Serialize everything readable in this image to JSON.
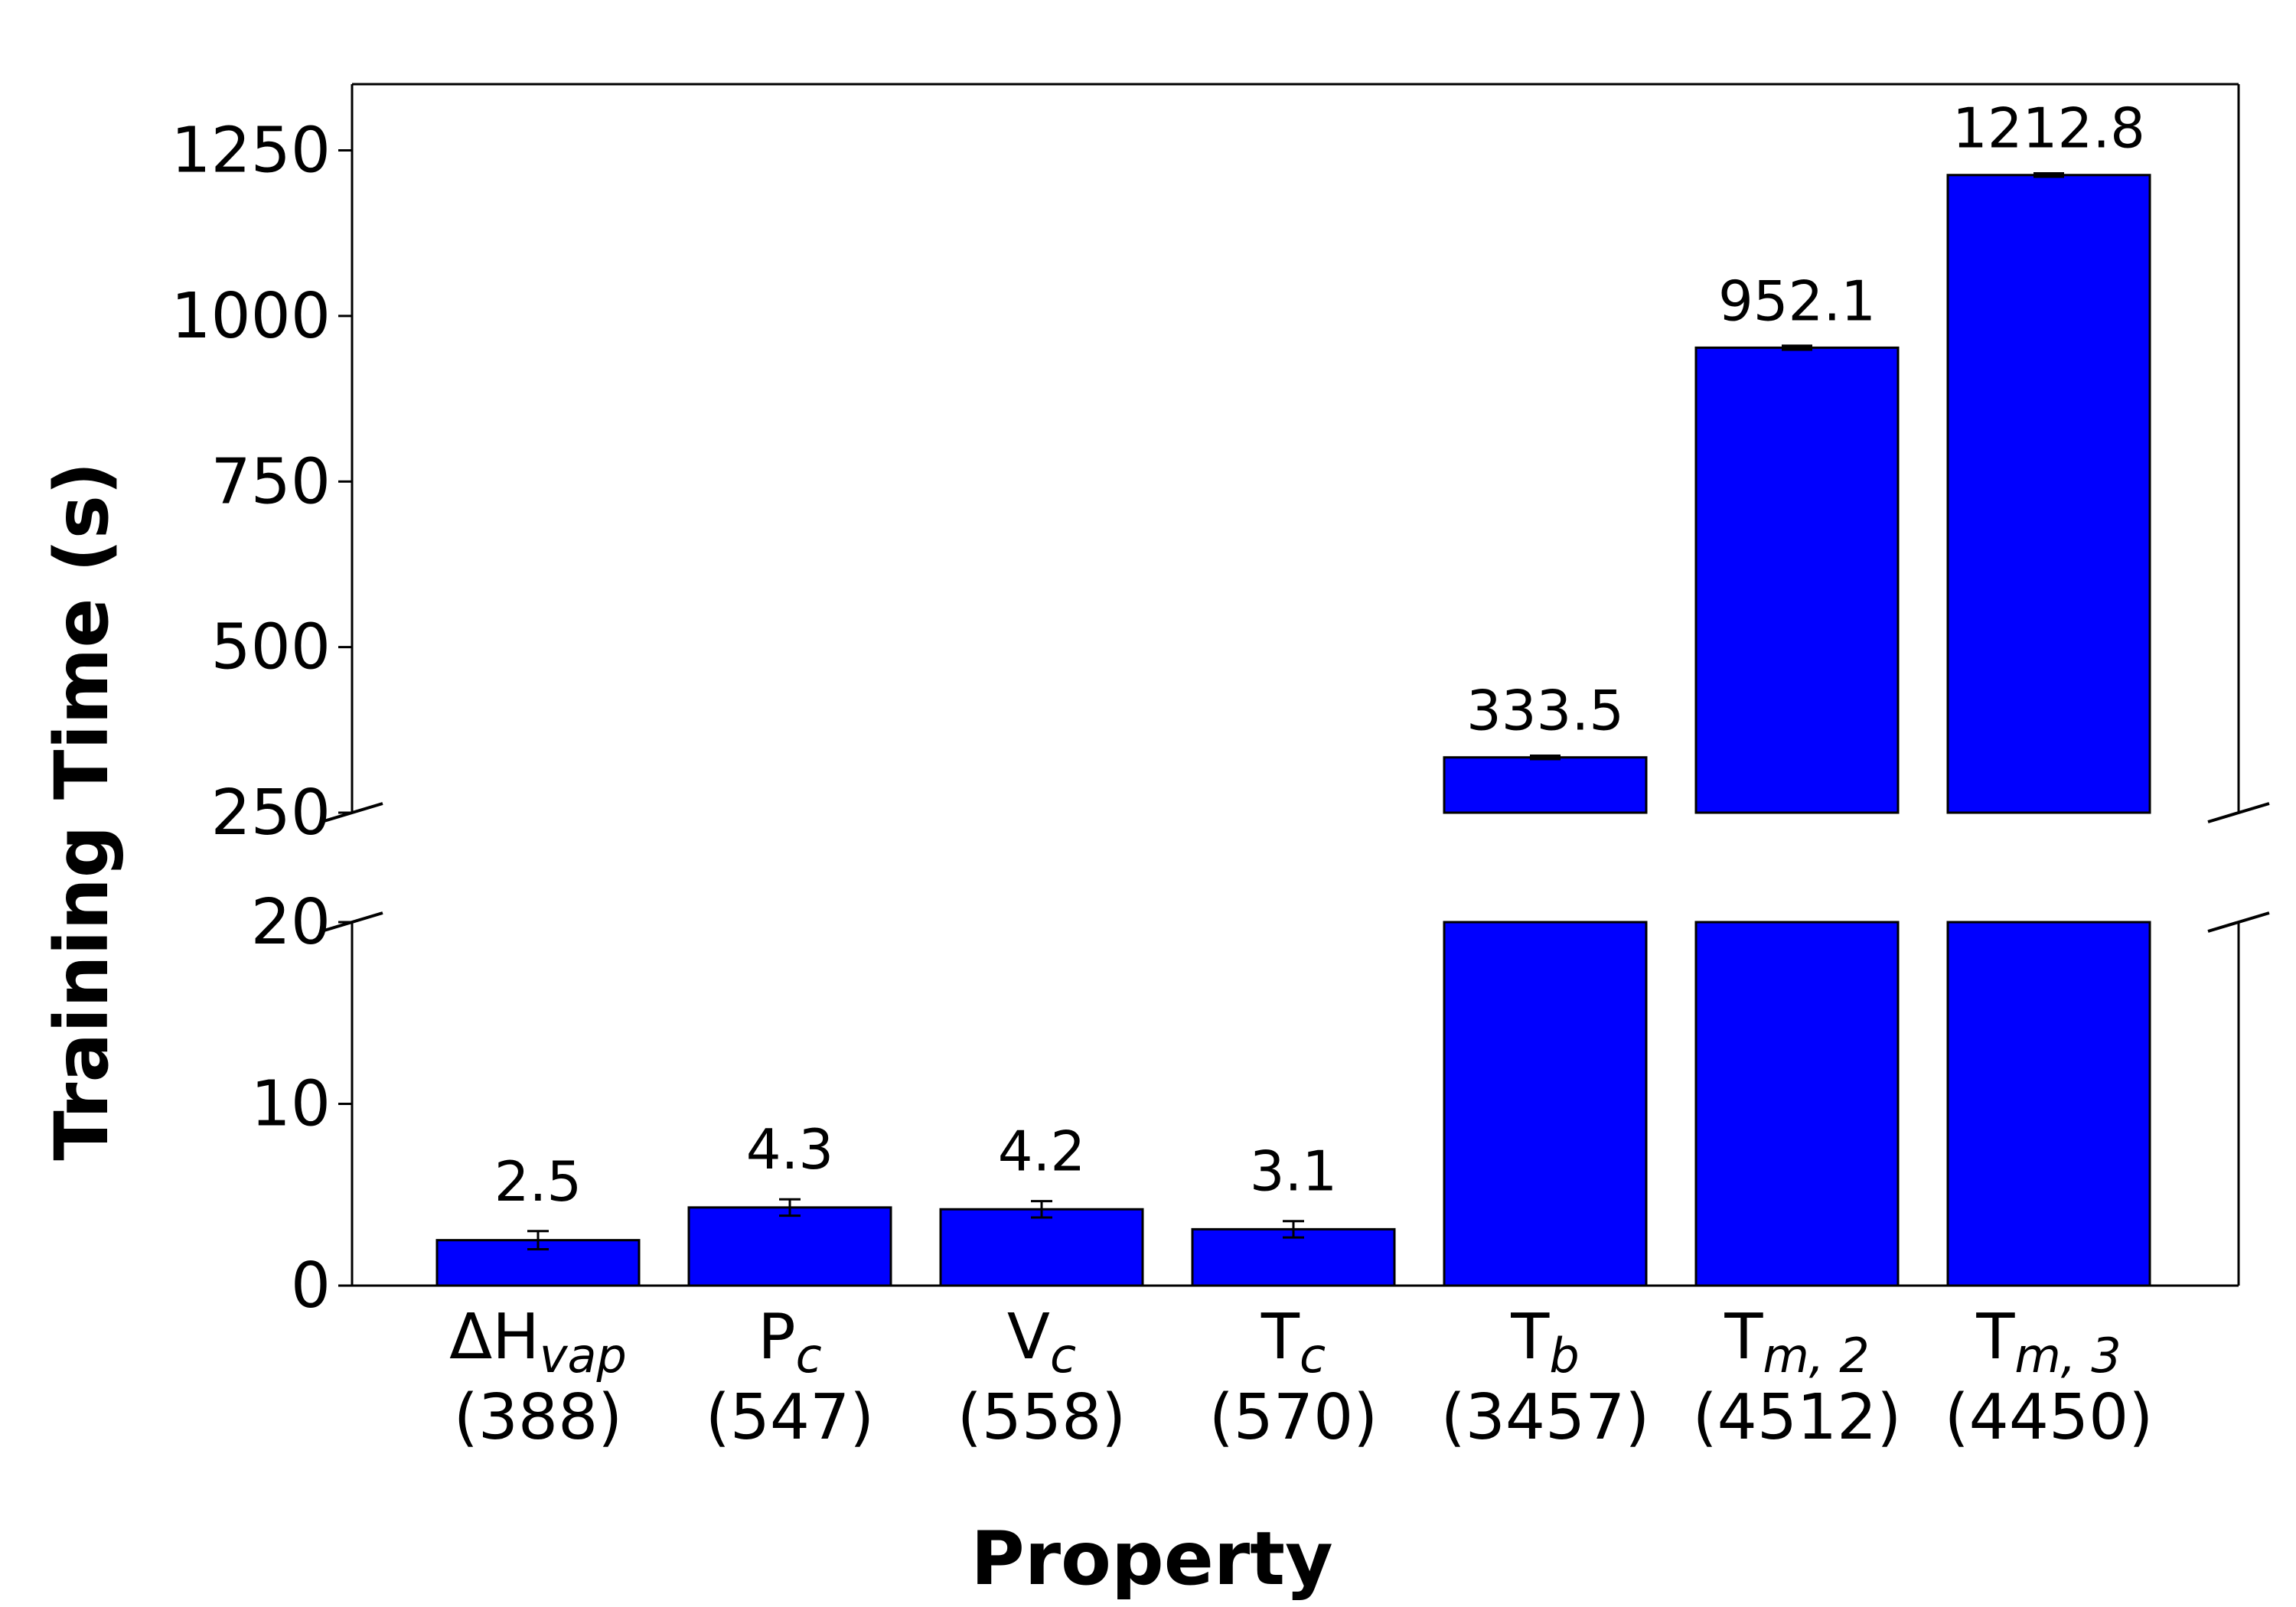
{
  "chart_data": {
    "type": "bar",
    "xlabel": "Property",
    "ylabel": "Training Time (s)",
    "broken_axis": true,
    "lower_ylim": [
      0,
      20
    ],
    "upper_ylim": [
      250,
      1350
    ],
    "lower_yticks": [
      "0",
      "10",
      "20"
    ],
    "upper_yticks": [
      "250",
      "500",
      "750",
      "1000",
      "1250"
    ],
    "bar_color": "#0000ff",
    "categories": [
      {
        "symbol": "ΔH",
        "sub": "vap",
        "count": "(388)"
      },
      {
        "symbol": "P",
        "sub": "c",
        "count": "(547)"
      },
      {
        "symbol": "V",
        "sub": "c",
        "count": "(558)"
      },
      {
        "symbol": "T",
        "sub": "c",
        "count": "(570)"
      },
      {
        "symbol": "T",
        "sub": "b",
        "count": "(3457)"
      },
      {
        "symbol": "T",
        "sub": "m, 2",
        "count": "(4512)"
      },
      {
        "symbol": "T",
        "sub": "m, 3",
        "count": "(4450)"
      }
    ],
    "values": [
      2.5,
      4.3,
      4.2,
      3.1,
      333.5,
      952.1,
      1212.8
    ],
    "errors": [
      0.5,
      0.45,
      0.45,
      0.45,
      2.0,
      2.5,
      2.0
    ],
    "value_labels": [
      "2.5",
      "4.3",
      "4.2",
      "3.1",
      "333.5",
      "952.1",
      "1212.8"
    ]
  }
}
